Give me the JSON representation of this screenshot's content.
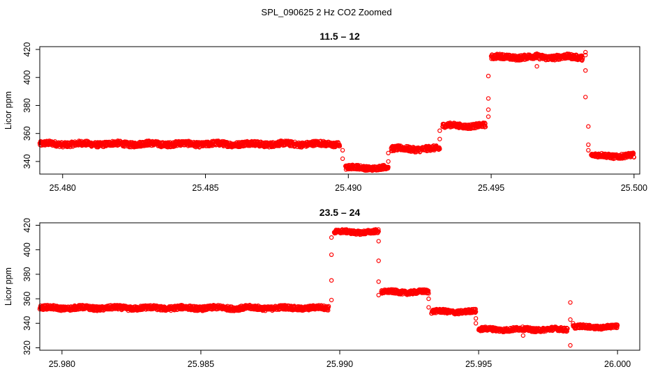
{
  "figure": {
    "title": "SPL_090625  2 Hz CO2 Zoomed"
  },
  "chart_data": [
    {
      "type": "scatter",
      "title": "11.5 – 12",
      "xlabel": "",
      "ylabel": "Licor ppm",
      "xlim": [
        25.4792,
        25.5002
      ],
      "ylim": [
        331,
        422
      ],
      "xticks": [
        25.48,
        25.485,
        25.49,
        25.495,
        25.5
      ],
      "xtick_labels": [
        "25.480",
        "25.485",
        "25.490",
        "25.495",
        "25.500"
      ],
      "yticks": [
        340,
        360,
        380,
        400,
        420
      ],
      "ytick_labels": [
        "340",
        "360",
        "380",
        "400",
        "420"
      ],
      "grid": false,
      "marker": "open-circle",
      "color": "#ff0000",
      "series": [
        {
          "segments": [
            {
              "x0": 25.4792,
              "x1": 25.4897,
              "level": 352.5,
              "spread": 1.8
            },
            {
              "x0": 25.4899,
              "x1": 25.4914,
              "level": 335.5,
              "spread": 1.6
            },
            {
              "x0": 25.4915,
              "x1": 25.4932,
              "level": 349.0,
              "spread": 1.8
            },
            {
              "x0": 25.4933,
              "x1": 25.4948,
              "level": 365.5,
              "spread": 1.6
            },
            {
              "x0": 25.495,
              "x1": 25.4982,
              "level": 414.5,
              "spread": 1.8
            },
            {
              "x0": 25.4985,
              "x1": 25.5,
              "level": 344.0,
              "spread": 1.6
            }
          ],
          "points": [
            [
              25.4898,
              348
            ],
            [
              25.4898,
              342
            ],
            [
              25.4914,
              340
            ],
            [
              25.4914,
              346
            ],
            [
              25.4932,
              356
            ],
            [
              25.4932,
              362
            ],
            [
              25.4949,
              372
            ],
            [
              25.4949,
              377
            ],
            [
              25.4949,
              385
            ],
            [
              25.4949,
              401
            ],
            [
              25.4966,
              408
            ],
            [
              25.4966,
              417
            ],
            [
              25.4983,
              418
            ],
            [
              25.4983,
              416
            ],
            [
              25.4983,
              405
            ],
            [
              25.4983,
              386
            ],
            [
              25.4984,
              365
            ],
            [
              25.4984,
              352
            ],
            [
              25.4984,
              348
            ]
          ]
        }
      ]
    },
    {
      "type": "scatter",
      "title": "23.5 – 24",
      "xlabel": "",
      "ylabel": "Licor ppm",
      "xlim": [
        25.9792,
        26.0008
      ],
      "ylim": [
        318,
        422
      ],
      "xticks": [
        25.98,
        25.985,
        25.99,
        25.995,
        26.0
      ],
      "xtick_labels": [
        "25.980",
        "25.985",
        "25.990",
        "25.995",
        "26.000"
      ],
      "yticks": [
        320,
        340,
        360,
        380,
        400,
        420
      ],
      "ytick_labels": [
        "320",
        "340",
        "360",
        "380",
        "400",
        "420"
      ],
      "grid": false,
      "marker": "open-circle",
      "color": "#ff0000",
      "series": [
        {
          "segments": [
            {
              "x0": 25.9792,
              "x1": 25.9896,
              "level": 352.5,
              "spread": 1.8
            },
            {
              "x0": 25.9898,
              "x1": 25.9914,
              "level": 414.5,
              "spread": 1.6
            },
            {
              "x0": 25.9915,
              "x1": 25.9932,
              "level": 365.5,
              "spread": 1.6
            },
            {
              "x0": 25.9933,
              "x1": 25.9949,
              "level": 349.5,
              "spread": 1.6
            },
            {
              "x0": 25.995,
              "x1": 25.9982,
              "level": 335.0,
              "spread": 1.6
            },
            {
              "x0": 25.9984,
              "x1": 26.0,
              "level": 337.0,
              "spread": 1.5
            }
          ],
          "points": [
            [
              25.9897,
              359
            ],
            [
              25.9897,
              375
            ],
            [
              25.9897,
              396
            ],
            [
              25.9897,
              410
            ],
            [
              25.9914,
              407
            ],
            [
              25.9914,
              391
            ],
            [
              25.9914,
              374
            ],
            [
              25.9914,
              363
            ],
            [
              25.9932,
              360
            ],
            [
              25.9932,
              353
            ],
            [
              25.9949,
              344
            ],
            [
              25.9949,
              340
            ],
            [
              25.9966,
              330
            ],
            [
              25.9983,
              322
            ],
            [
              25.9983,
              357
            ],
            [
              25.9983,
              343
            ],
            [
              25.9984,
              340
            ]
          ]
        }
      ]
    }
  ]
}
